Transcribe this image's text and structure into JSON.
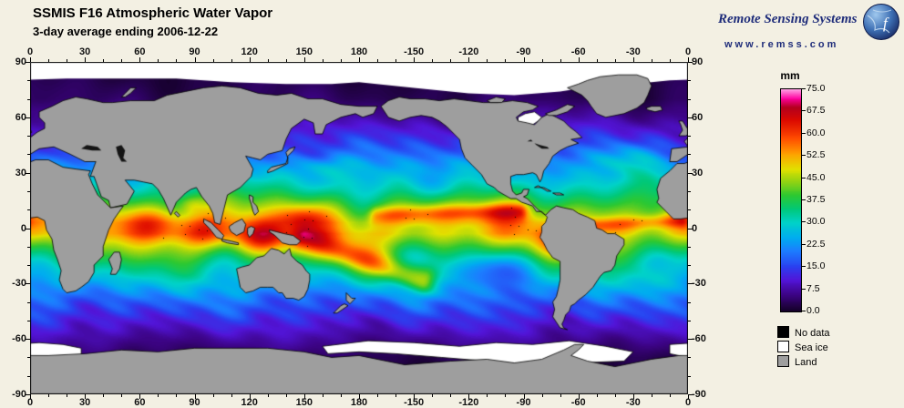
{
  "header": {
    "title": "SSMIS F16 Atmospheric Water Vapor",
    "subtitle": "3-day average ending 2006-12-22"
  },
  "branding": {
    "name": "Remote Sensing Systems",
    "website": "www.remss.com"
  },
  "axes": {
    "lon_labels": [
      "0",
      "30",
      "60",
      "90",
      "120",
      "150",
      "180",
      "-150",
      "-120",
      "-90",
      "-60",
      "-30",
      "0"
    ],
    "lat_labels": [
      "90",
      "60",
      "30",
      "0",
      "-30",
      "-60",
      "-90"
    ]
  },
  "colorbar": {
    "unit": "mm",
    "min": 0,
    "max": 75,
    "tick_labels": [
      "75.0",
      "67.5",
      "60.0",
      "52.5",
      "45.0",
      "37.5",
      "30.0",
      "22.5",
      "15.0",
      "7.5",
      "0.0"
    ],
    "stops": [
      {
        "t": 0.0,
        "c": "#150129"
      },
      {
        "t": 0.07,
        "c": "#3b0380"
      },
      {
        "t": 0.14,
        "c": "#5215d8"
      },
      {
        "t": 0.2,
        "c": "#2a41f0"
      },
      {
        "t": 0.27,
        "c": "#1c7dff"
      },
      {
        "t": 0.33,
        "c": "#00acf0"
      },
      {
        "t": 0.4,
        "c": "#00d2c8"
      },
      {
        "t": 0.46,
        "c": "#00c878"
      },
      {
        "t": 0.52,
        "c": "#2cc832"
      },
      {
        "t": 0.58,
        "c": "#8cd214"
      },
      {
        "t": 0.64,
        "c": "#e1e100"
      },
      {
        "t": 0.71,
        "c": "#ffa000"
      },
      {
        "t": 0.78,
        "c": "#ff4b00"
      },
      {
        "t": 0.86,
        "c": "#dc0a00"
      },
      {
        "t": 0.92,
        "c": "#b4001e"
      },
      {
        "t": 0.96,
        "c": "#ff00a0"
      },
      {
        "t": 1.0,
        "c": "#ff9be1"
      }
    ]
  },
  "legend": {
    "items": [
      {
        "label": "No data",
        "color": "#000000"
      },
      {
        "label": "Sea ice",
        "color": "#ffffff"
      },
      {
        "label": "Land",
        "color": "#9e9e9e"
      }
    ]
  },
  "map": {
    "land_color": "#9e9e9e",
    "seaice_color": "#ffffff",
    "nodata_color": "#000000"
  }
}
